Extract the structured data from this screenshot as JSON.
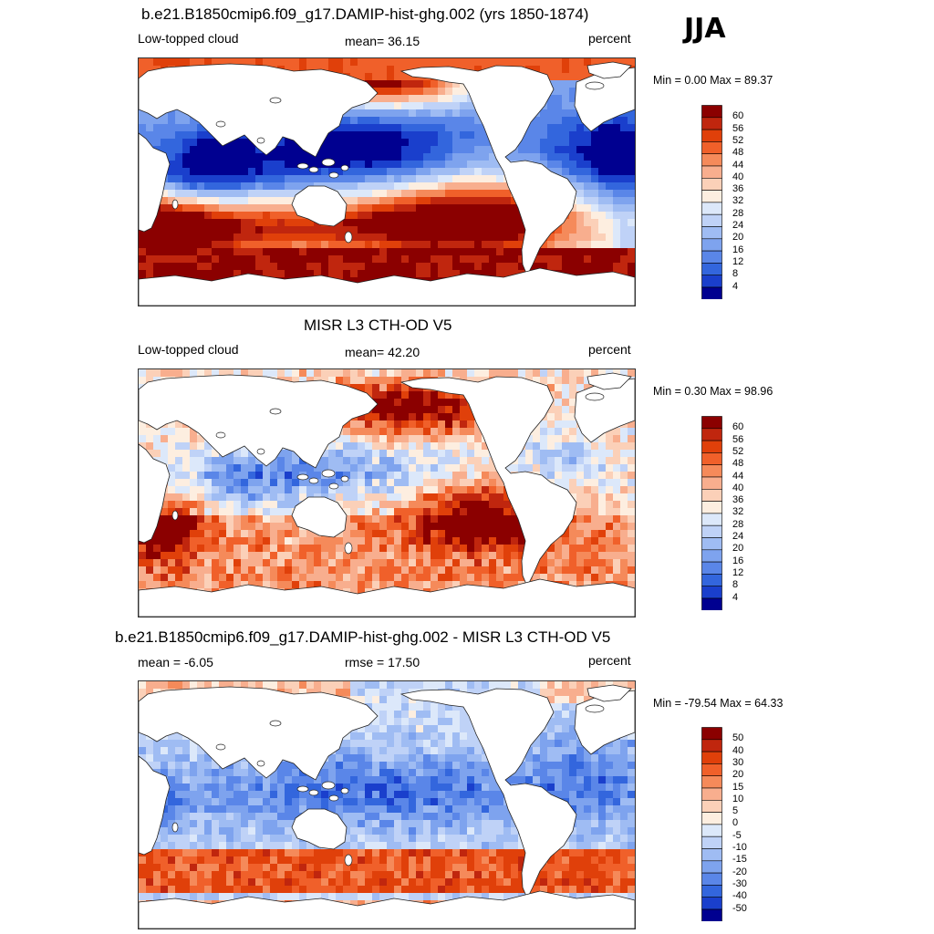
{
  "season": "JJA",
  "panels": [
    {
      "title": "b.e21.B1850cmip6.f09_g17.DAMIP-hist-ghg.002 (yrs 1850-1874)",
      "left_text": "Low-topped cloud",
      "center_text": "mean=  36.15",
      "right_text": "percent",
      "minmax_text": "Min =   0.00 Max =  89.37",
      "style": "model",
      "colorbar": {
        "labels": [
          "60",
          "56",
          "52",
          "48",
          "44",
          "40",
          "36",
          "32",
          "28",
          "24",
          "20",
          "16",
          "12",
          "8",
          "4"
        ],
        "colors": [
          "#8b0000",
          "#c0260e",
          "#e0400a",
          "#f0602a",
          "#f58a5a",
          "#f8ae8e",
          "#fbd0b8",
          "#fdeee0",
          "#dce8fa",
          "#bfd2f7",
          "#9fbcf3",
          "#7ea3ee",
          "#5a86e8",
          "#3366dd",
          "#1a3fcc",
          "#000090"
        ]
      }
    },
    {
      "title": "MISR L3 CTH-OD V5",
      "left_text": "Low-topped cloud",
      "center_text": "mean=  42.20",
      "right_text": "percent",
      "minmax_text": "Min =   0.30 Max =  98.96",
      "style": "obs",
      "colorbar": {
        "labels": [
          "60",
          "56",
          "52",
          "48",
          "44",
          "40",
          "36",
          "32",
          "28",
          "24",
          "20",
          "16",
          "12",
          "8",
          "4"
        ],
        "colors": [
          "#8b0000",
          "#c0260e",
          "#e0400a",
          "#f0602a",
          "#f58a5a",
          "#f8ae8e",
          "#fbd0b8",
          "#fdeee0",
          "#dce8fa",
          "#bfd2f7",
          "#9fbcf3",
          "#7ea3ee",
          "#5a86e8",
          "#3366dd",
          "#1a3fcc",
          "#000090"
        ]
      }
    },
    {
      "title": "b.e21.B1850cmip6.f09_g17.DAMIP-hist-ghg.002 - MISR L3 CTH-OD V5",
      "left_text": "mean =  -6.05",
      "center_text": "rmse =  17.50",
      "right_text": "percent",
      "minmax_text": "Min = -79.54 Max =  64.33",
      "style": "diff",
      "colorbar": {
        "labels": [
          "50",
          "40",
          "30",
          "20",
          "15",
          "10",
          "5",
          "0",
          "-5",
          "-10",
          "-15",
          "-20",
          "-30",
          "-40",
          "-50"
        ],
        "colors": [
          "#8b0000",
          "#c0260e",
          "#e0400a",
          "#f0602a",
          "#f58a5a",
          "#f8ae8e",
          "#fbd0b8",
          "#fdeee0",
          "#dce8fa",
          "#bfd2f7",
          "#9fbcf3",
          "#7ea3ee",
          "#5a86e8",
          "#3366dd",
          "#1a3fcc",
          "#000090"
        ]
      }
    }
  ]
}
